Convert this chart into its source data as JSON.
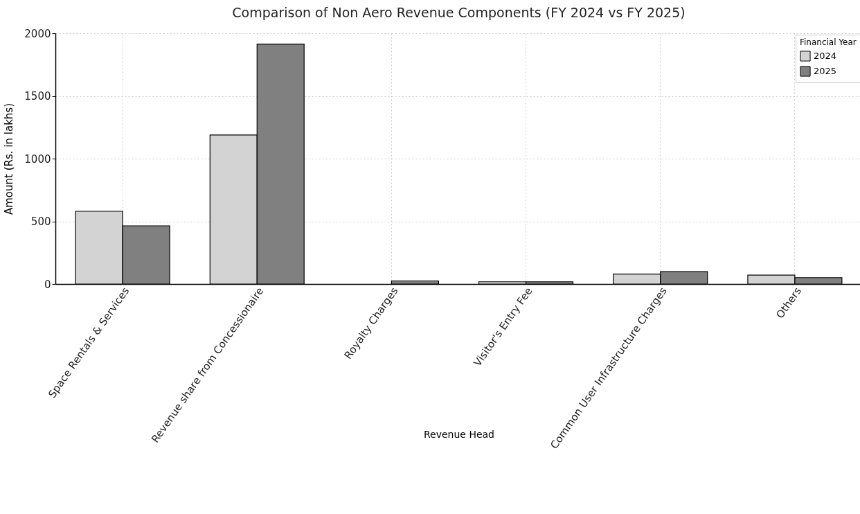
{
  "chart_data": {
    "type": "bar",
    "title": "Comparison of Non Aero Revenue Components (FY 2024 vs FY 2025)",
    "xlabel": "Revenue Head",
    "ylabel": "Amount (Rs. in lakhs)",
    "legend_title": "Financial Year",
    "categories": [
      "Space Rentals & Services",
      "Revenue share from Concessionaire",
      "Royalty Charges",
      "Visitor's Entry Fee",
      "Common User Infrastructure Charges",
      "Others"
    ],
    "series": [
      {
        "name": "2024",
        "color": "#d3d3d3",
        "values": [
          580,
          1189,
          null,
          18,
          79,
          71
        ]
      },
      {
        "name": "2025",
        "color": "#808080",
        "values": [
          464,
          1914,
          25,
          18,
          99,
          51
        ]
      }
    ],
    "ylim": [
      0,
      2000
    ],
    "yticks": [
      0,
      500,
      1000,
      1500,
      2000
    ],
    "grid": true,
    "legend": "top right"
  }
}
